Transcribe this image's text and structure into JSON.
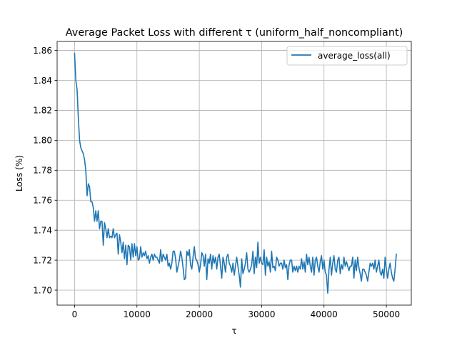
{
  "chart_data": {
    "type": "line",
    "title": "Average Packet Loss with different τ (uniform_half_noncompliant)",
    "xlabel": "τ",
    "ylabel": "Loss (%)",
    "xlim": [
      -2800,
      54000
    ],
    "ylim": [
      1.69,
      1.866
    ],
    "xticks": [
      0,
      10000,
      20000,
      30000,
      40000,
      50000
    ],
    "xtick_labels": [
      "0",
      "10000",
      "20000",
      "30000",
      "40000",
      "50000"
    ],
    "yticks": [
      1.7,
      1.72,
      1.74,
      1.76,
      1.78,
      1.8,
      1.82,
      1.84,
      1.86
    ],
    "ytick_labels": [
      "1.70",
      "1.72",
      "1.74",
      "1.76",
      "1.78",
      "1.80",
      "1.82",
      "1.84",
      "1.86"
    ],
    "grid": true,
    "legend_position": "top-right",
    "series": [
      {
        "name": "average_loss(all)",
        "color": "#1f77b4",
        "x_start": 0,
        "x_step": 200,
        "values": [
          1.858,
          1.84,
          1.834,
          1.815,
          1.8,
          1.795,
          1.793,
          1.791,
          1.787,
          1.78,
          1.763,
          1.771,
          1.769,
          1.759,
          1.759,
          1.755,
          1.746,
          1.753,
          1.746,
          1.753,
          1.741,
          1.746,
          1.746,
          1.73,
          1.745,
          1.741,
          1.735,
          1.741,
          1.735,
          1.736,
          1.735,
          1.741,
          1.735,
          1.737,
          1.738,
          1.724,
          1.737,
          1.732,
          1.725,
          1.732,
          1.721,
          1.73,
          1.717,
          1.73,
          1.729,
          1.72,
          1.731,
          1.722,
          1.731,
          1.723,
          1.729,
          1.72,
          1.721,
          1.729,
          1.722,
          1.725,
          1.723,
          1.726,
          1.721,
          1.723,
          1.718,
          1.722,
          1.724,
          1.72,
          1.724,
          1.722,
          1.722,
          1.72,
          1.718,
          1.727,
          1.719,
          1.724,
          1.722,
          1.72,
          1.724,
          1.716,
          1.718,
          1.714,
          1.718,
          1.726,
          1.726,
          1.721,
          1.712,
          1.716,
          1.72,
          1.726,
          1.722,
          1.715,
          1.707,
          1.708,
          1.726,
          1.723,
          1.727,
          1.717,
          1.714,
          1.722,
          1.729,
          1.721,
          1.72,
          1.717,
          1.712,
          1.717,
          1.725,
          1.723,
          1.716,
          1.724,
          1.707,
          1.721,
          1.718,
          1.724,
          1.714,
          1.723,
          1.718,
          1.722,
          1.714,
          1.722,
          1.724,
          1.716,
          1.708,
          1.722,
          1.718,
          1.712,
          1.722,
          1.724,
          1.718,
          1.716,
          1.712,
          1.718,
          1.71,
          1.716,
          1.722,
          1.716,
          1.71,
          1.702,
          1.721,
          1.711,
          1.714,
          1.718,
          1.725,
          1.714,
          1.712,
          1.714,
          1.717,
          1.726,
          1.711,
          1.722,
          1.715,
          1.732,
          1.718,
          1.722,
          1.718,
          1.717,
          1.727,
          1.71,
          1.722,
          1.716,
          1.719,
          1.712,
          1.726,
          1.715,
          1.716,
          1.713,
          1.722,
          1.72,
          1.716,
          1.718,
          1.718,
          1.714,
          1.72,
          1.715,
          1.717,
          1.707,
          1.717,
          1.72,
          1.72,
          1.712,
          1.716,
          1.713,
          1.716,
          1.712,
          1.716,
          1.714,
          1.721,
          1.714,
          1.719,
          1.712,
          1.724,
          1.717,
          1.722,
          1.716,
          1.712,
          1.722,
          1.71,
          1.72,
          1.722,
          1.716,
          1.712,
          1.719,
          1.723,
          1.714,
          1.72,
          1.712,
          1.71,
          1.698,
          1.714,
          1.722,
          1.71,
          1.718,
          1.723,
          1.714,
          1.712,
          1.72,
          1.722,
          1.711,
          1.717,
          1.714,
          1.722,
          1.716,
          1.719,
          1.716,
          1.713,
          1.716,
          1.716,
          1.722,
          1.708,
          1.72,
          1.713,
          1.722,
          1.715,
          1.711,
          1.706,
          1.714,
          1.714,
          1.712,
          1.71,
          1.706,
          1.712,
          1.718,
          1.716,
          1.718,
          1.714,
          1.72,
          1.712,
          1.716,
          1.72,
          1.712,
          1.71,
          1.714,
          1.708,
          1.722,
          1.714,
          1.708,
          1.714,
          1.718,
          1.712,
          1.708,
          1.706,
          1.714,
          1.724
        ]
      }
    ]
  }
}
